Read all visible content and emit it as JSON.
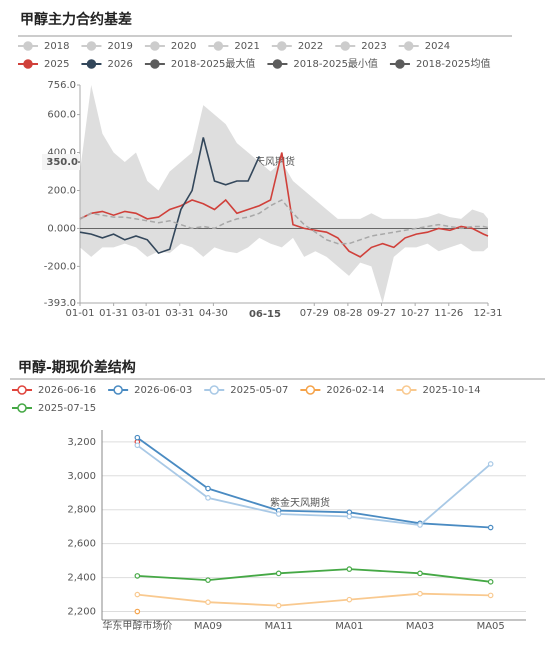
{
  "chart_data": [
    {
      "type": "line",
      "title": "甲醇主力合约基差",
      "watermark": "紫金天风期货",
      "x": [
        "01-01",
        "01-11",
        "01-21",
        "01-31",
        "02-10",
        "02-20",
        "03-02",
        "03-12",
        "03-22",
        "04-01",
        "04-11",
        "04-21",
        "05-01",
        "05-11",
        "05-21",
        "05-31",
        "06-10",
        "06-20",
        "06-30",
        "07-10",
        "07-20",
        "07-30",
        "08-09",
        "08-19",
        "08-29",
        "09-08",
        "09-18",
        "09-28",
        "10-08",
        "10-18",
        "10-28",
        "11-07",
        "11-17",
        "11-27",
        "12-07",
        "12-17",
        "12-27",
        "12-31"
      ],
      "xlim": [
        "01-01",
        "12-31"
      ],
      "xticks": [
        "01-01",
        "01-31",
        "03-01",
        "03-31",
        "04-30",
        "07-29",
        "08-28",
        "09-27",
        "10-27",
        "11-26",
        "12-31"
      ],
      "ylim": [
        -393,
        756
      ],
      "yticks": [
        {
          "value": 756,
          "label": "756.0"
        },
        {
          "value": 600,
          "label": "600.0"
        },
        {
          "value": 400,
          "label": "400.0"
        },
        {
          "value": 200,
          "label": "200.0"
        },
        {
          "value": 0,
          "label": "0.000"
        },
        {
          "value": -200,
          "label": "-200.0"
        },
        {
          "value": -393,
          "label": "-393.0"
        }
      ],
      "inactive_legend": [
        "2018",
        "2019",
        "2020",
        "2021",
        "2022",
        "2023",
        "2024"
      ],
      "inactive_color": "#cccccc",
      "band_color": "#dedede",
      "axis_pointer": {
        "x_label": "06-15",
        "y": {
          "value": 350,
          "label": "350.0"
        }
      },
      "series": [
        {
          "name": "2025",
          "color": "#d0403a",
          "values": [
            50,
            80,
            90,
            70,
            90,
            80,
            50,
            60,
            100,
            120,
            150,
            130,
            100,
            150,
            80,
            100,
            120,
            150,
            400,
            20,
            0,
            -10,
            -20,
            -50,
            -120,
            -150,
            -100,
            -80,
            -100,
            -50,
            -30,
            -20,
            0,
            -10,
            10,
            0,
            -30,
            -40
          ]
        },
        {
          "name": "2026",
          "color": "#33475b",
          "values": [
            -20,
            -30,
            -50,
            -30,
            -60,
            -40,
            -60,
            -130,
            -110,
            100,
            200,
            480,
            250,
            230,
            250,
            250,
            380,
            null,
            null,
            null,
            null,
            null,
            null,
            null,
            null,
            null,
            null,
            null,
            null,
            null,
            null,
            null,
            null,
            null,
            null,
            null,
            null,
            null
          ]
        },
        {
          "name": "2018-2025最大值",
          "color": "#5c5c5c",
          "role": "max",
          "values": [
            300,
            756,
            500,
            400,
            350,
            400,
            250,
            200,
            300,
            350,
            400,
            650,
            600,
            550,
            450,
            400,
            350,
            300,
            350,
            250,
            200,
            150,
            100,
            50,
            50,
            50,
            80,
            50,
            50,
            50,
            50,
            60,
            80,
            60,
            50,
            100,
            80,
            50
          ]
        },
        {
          "name": "2018-2025最小值",
          "color": "#5c5c5c",
          "role": "min",
          "values": [
            -100,
            -150,
            -100,
            -100,
            -80,
            -100,
            -150,
            -120,
            -130,
            -80,
            -100,
            -150,
            -100,
            -120,
            -130,
            -100,
            -50,
            -80,
            -100,
            -50,
            -150,
            -120,
            -150,
            -200,
            -250,
            -180,
            -200,
            -393,
            -150,
            -100,
            -100,
            -80,
            -120,
            -100,
            -80,
            -120,
            -120,
            -100
          ]
        },
        {
          "name": "2018-2025均值",
          "color": "#5c5c5c",
          "role": "mean",
          "line_color": "#a8a8a8",
          "values": [
            50,
            80,
            70,
            60,
            60,
            50,
            40,
            30,
            40,
            20,
            0,
            10,
            0,
            30,
            50,
            60,
            80,
            120,
            150,
            80,
            20,
            -20,
            -60,
            -80,
            -80,
            -60,
            -40,
            -30,
            -20,
            -10,
            0,
            10,
            20,
            10,
            0,
            10,
            10,
            5
          ]
        }
      ]
    },
    {
      "type": "line",
      "title": "甲醇-期现价差结构",
      "watermark": "紫金天风期货",
      "categories": [
        "华东甲醇市场价",
        "MA09",
        "MA11",
        "MA01",
        "MA03",
        "MA05"
      ],
      "ylim": [
        2150,
        3270
      ],
      "yticks": [
        {
          "value": 2200,
          "label": "2,200"
        },
        {
          "value": 2400,
          "label": "2,400"
        },
        {
          "value": 2600,
          "label": "2,600"
        },
        {
          "value": 2800,
          "label": "2,800"
        },
        {
          "value": 3000,
          "label": "3,000"
        },
        {
          "value": 3200,
          "label": "3,200"
        }
      ],
      "grid": true,
      "series": [
        {
          "name": "2026-06-16",
          "color": "#e0443c",
          "values": [
            3200,
            null,
            null,
            null,
            null,
            null
          ]
        },
        {
          "name": "2026-06-03",
          "color": "#4a8bc2",
          "values": [
            3225,
            2925,
            2795,
            2785,
            2720,
            2695
          ]
        },
        {
          "name": "2025-05-07",
          "color": "#a9c9e6",
          "values": [
            3180,
            2870,
            2775,
            2760,
            2710,
            3070
          ]
        },
        {
          "name": "2026-02-14",
          "color": "#f5a34a",
          "values": [
            2200,
            null,
            null,
            null,
            null,
            null
          ]
        },
        {
          "name": "2025-10-14",
          "color": "#f9c98f",
          "values": [
            2300,
            2255,
            2235,
            2270,
            2305,
            2295
          ]
        },
        {
          "name": "2025-07-15",
          "color": "#45a845",
          "values": [
            2410,
            2385,
            2425,
            2450,
            2425,
            2375
          ]
        }
      ]
    }
  ]
}
